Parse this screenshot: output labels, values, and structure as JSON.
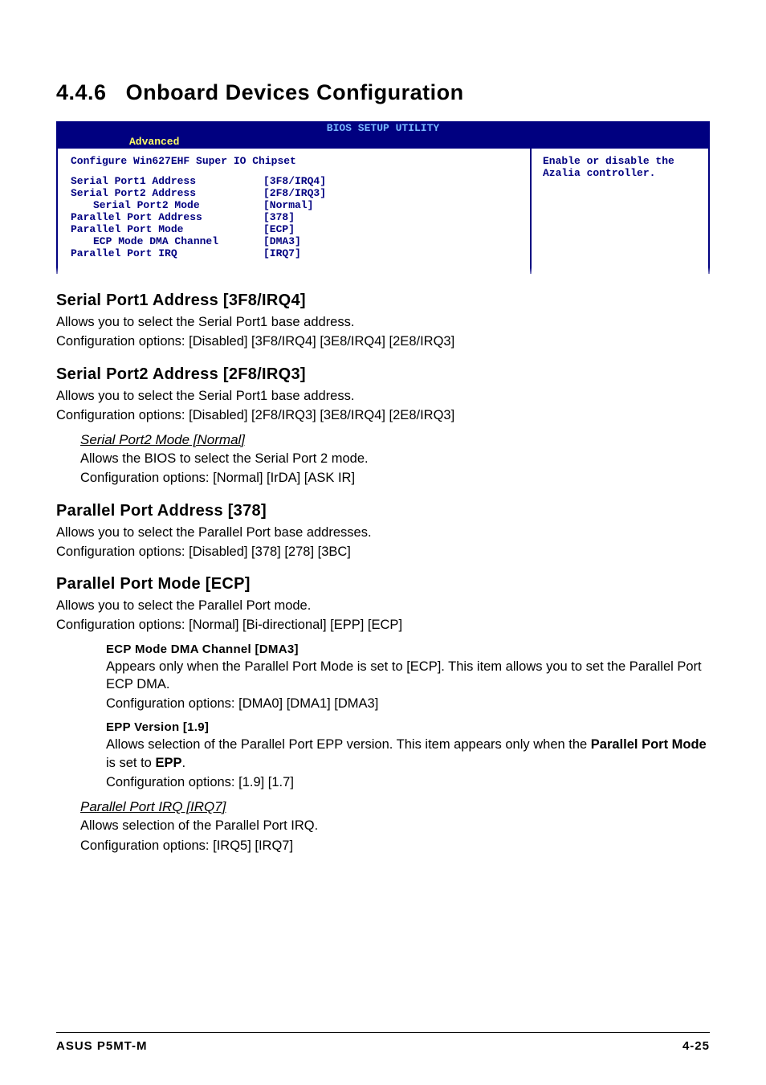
{
  "section_number": "4.4.6",
  "section_title": "Onboard Devices Configuration",
  "bios": {
    "title": "BIOS SETUP UTILITY",
    "tab": "Advanced",
    "config_line": "Configure Win627EHF Super IO Chipset",
    "help_line1": "Enable or disable the",
    "help_line2": "Azalia controller.",
    "rows": [
      {
        "label": "Serial Port1 Address",
        "value": "[3F8/IRQ4]",
        "indent": false
      },
      {
        "label": "Serial Port2 Address",
        "value": "[2F8/IRQ3]",
        "indent": false
      },
      {
        "label": "Serial Port2 Mode",
        "value": "[Normal]",
        "indent": true
      },
      {
        "label": "Parallel Port Address",
        "value": "[378]",
        "indent": false
      },
      {
        "label": "Parallel Port Mode",
        "value": "[ECP]",
        "indent": false
      },
      {
        "label": "ECP Mode DMA Channel",
        "value": "[DMA3]",
        "indent": true
      },
      {
        "label": "Parallel Port IRQ",
        "value": "[IRQ7]",
        "indent": false
      }
    ]
  },
  "items": {
    "sp1": {
      "heading": "Serial Port1 Address [3F8/IRQ4]",
      "line1": "Allows you to select the Serial Port1 base address.",
      "line2": "Configuration options: [Disabled] [3F8/IRQ4] [3E8/IRQ4] [2E8/IRQ3]"
    },
    "sp2": {
      "heading": "Serial Port2 Address [2F8/IRQ3]",
      "line1": "Allows you to select the Serial Port1 base address.",
      "line2": "Configuration options: [Disabled] [2F8/IRQ3] [3E8/IRQ4] [2E8/IRQ3]",
      "sub": {
        "title": "Serial Port2 Mode [Normal]",
        "line1": "Allows the BIOS to select the Serial Port 2 mode.",
        "line2": "Configuration options: [Normal] [IrDA] [ASK IR]"
      }
    },
    "ppa": {
      "heading": "Parallel Port Address [378]",
      "line1": "Allows you to select the Parallel Port base addresses.",
      "line2": "Configuration options: [Disabled] [378] [278] [3BC]"
    },
    "ppm": {
      "heading": "Parallel Port Mode [ECP]",
      "line1": "Allows you to select the Parallel Port  mode.",
      "line2": "Configuration options: [Normal] [Bi-directional] [EPP] [ECP]",
      "ecp": {
        "title": "ECP Mode DMA Channel [DMA3]",
        "line1": "Appears only when the Parallel Port Mode is set to [ECP]. This item allows you to set the Parallel Port ECP DMA.",
        "line2": "Configuration options: [DMA0] [DMA1] [DMA3]"
      },
      "epp": {
        "title": "EPP Version [1.9]",
        "line1a": "Allows selection of the Parallel Port EPP version. This item appears only when the ",
        "line1b": "Parallel Port Mode",
        "line1c": " is set to ",
        "line1d": "EPP",
        "line1e": ".",
        "line2": "Configuration options: [1.9] [1.7]"
      },
      "irq": {
        "title": "Parallel Port IRQ [IRQ7]",
        "line1": "Allows selection of the Parallel Port IRQ.",
        "line2": "Configuration options: [IRQ5] [IRQ7]"
      }
    }
  },
  "footer": {
    "left": "ASUS P5MT-M",
    "right": "4-25"
  },
  "colors": {
    "header_bg": "#000080",
    "header_title": "#7ab8ff",
    "tab_fg": "#ffff66",
    "body_fg": "#000080",
    "page_bg": "#ffffff"
  }
}
